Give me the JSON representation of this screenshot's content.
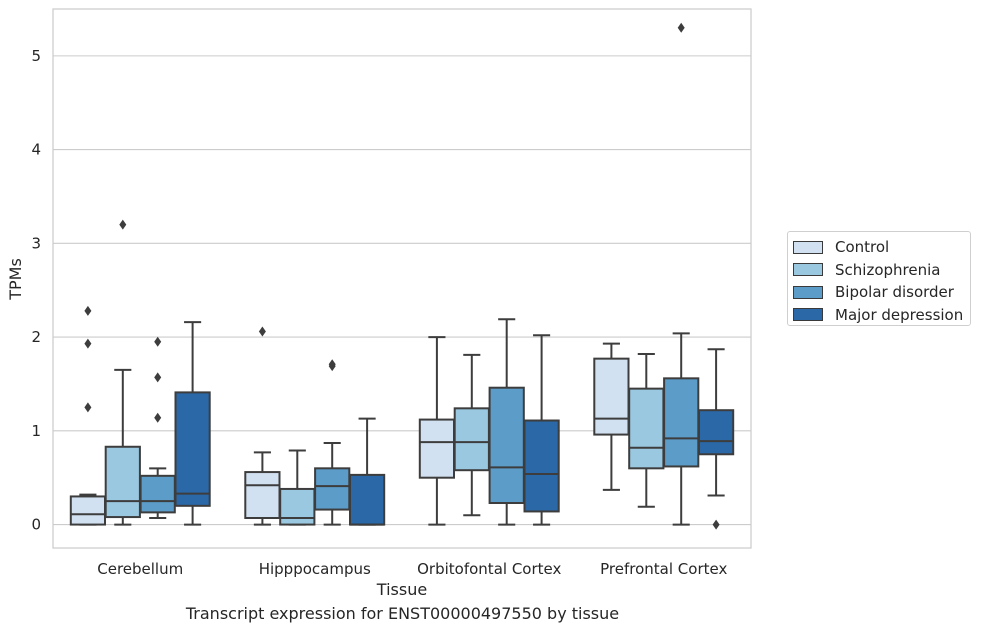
{
  "caption": "Transcript expression for ENST00000497550 by tissue",
  "chart_data": {
    "type": "boxplot",
    "xlabel": "Tissue",
    "ylabel": "TPMs",
    "ylim": [
      -0.25,
      5.5
    ],
    "yticks": [
      0,
      1,
      2,
      3,
      4,
      5
    ],
    "grid": "horizontal",
    "legend_position": "right",
    "categories": [
      "Cerebellum",
      "Hipppocampus",
      "Orbitofontal Cortex",
      "Prefrontal Cortex"
    ],
    "series": [
      {
        "name": "Control",
        "color": "#d2e1f1",
        "boxes": [
          {
            "whislo": 0.0,
            "q1": 0.0,
            "med": 0.11,
            "q3": 0.3,
            "whishi": 0.32,
            "fliers": [
              1.25,
              1.93,
              2.28
            ]
          },
          {
            "whislo": 0.0,
            "q1": 0.07,
            "med": 0.42,
            "q3": 0.56,
            "whishi": 0.77,
            "fliers": [
              2.06
            ]
          },
          {
            "whislo": 0.0,
            "q1": 0.5,
            "med": 0.88,
            "q3": 1.12,
            "whishi": 2.0,
            "fliers": []
          },
          {
            "whislo": 0.37,
            "q1": 0.96,
            "med": 1.13,
            "q3": 1.77,
            "whishi": 1.93,
            "fliers": []
          }
        ]
      },
      {
        "name": "Schizophrenia",
        "color": "#9ac8e0",
        "boxes": [
          {
            "whislo": 0.0,
            "q1": 0.08,
            "med": 0.25,
            "q3": 0.83,
            "whishi": 1.65,
            "fliers": [
              3.2
            ]
          },
          {
            "whislo": 0.0,
            "q1": 0.0,
            "med": 0.07,
            "q3": 0.38,
            "whishi": 0.79,
            "fliers": []
          },
          {
            "whislo": 0.1,
            "q1": 0.58,
            "med": 0.88,
            "q3": 1.24,
            "whishi": 1.81,
            "fliers": []
          },
          {
            "whislo": 0.19,
            "q1": 0.6,
            "med": 0.82,
            "q3": 1.45,
            "whishi": 1.82,
            "fliers": []
          }
        ]
      },
      {
        "name": "Bipolar disorder",
        "color": "#5b9cc9",
        "boxes": [
          {
            "whislo": 0.07,
            "q1": 0.13,
            "med": 0.25,
            "q3": 0.52,
            "whishi": 0.6,
            "fliers": [
              1.14,
              1.57,
              1.95
            ]
          },
          {
            "whislo": 0.0,
            "q1": 0.16,
            "med": 0.41,
            "q3": 0.6,
            "whishi": 0.87,
            "fliers": [
              1.69,
              1.71
            ]
          },
          {
            "whislo": 0.0,
            "q1": 0.23,
            "med": 0.61,
            "q3": 1.46,
            "whishi": 2.19,
            "fliers": []
          },
          {
            "whislo": 0.0,
            "q1": 0.62,
            "med": 0.92,
            "q3": 1.56,
            "whishi": 2.04,
            "fliers": [
              5.3
            ]
          }
        ]
      },
      {
        "name": "Major depression",
        "color": "#2a68a8",
        "boxes": [
          {
            "whislo": 0.0,
            "q1": 0.2,
            "med": 0.33,
            "q3": 1.41,
            "whishi": 2.16,
            "fliers": []
          },
          {
            "whislo": 0.0,
            "q1": 0.0,
            "med": 0.0,
            "q3": 0.53,
            "whishi": 1.13,
            "fliers": []
          },
          {
            "whislo": 0.0,
            "q1": 0.14,
            "med": 0.54,
            "q3": 1.11,
            "whishi": 2.02,
            "fliers": []
          },
          {
            "whislo": 0.31,
            "q1": 0.75,
            "med": 0.89,
            "q3": 1.22,
            "whishi": 1.87,
            "fliers": [
              0.0
            ]
          }
        ]
      }
    ]
  }
}
